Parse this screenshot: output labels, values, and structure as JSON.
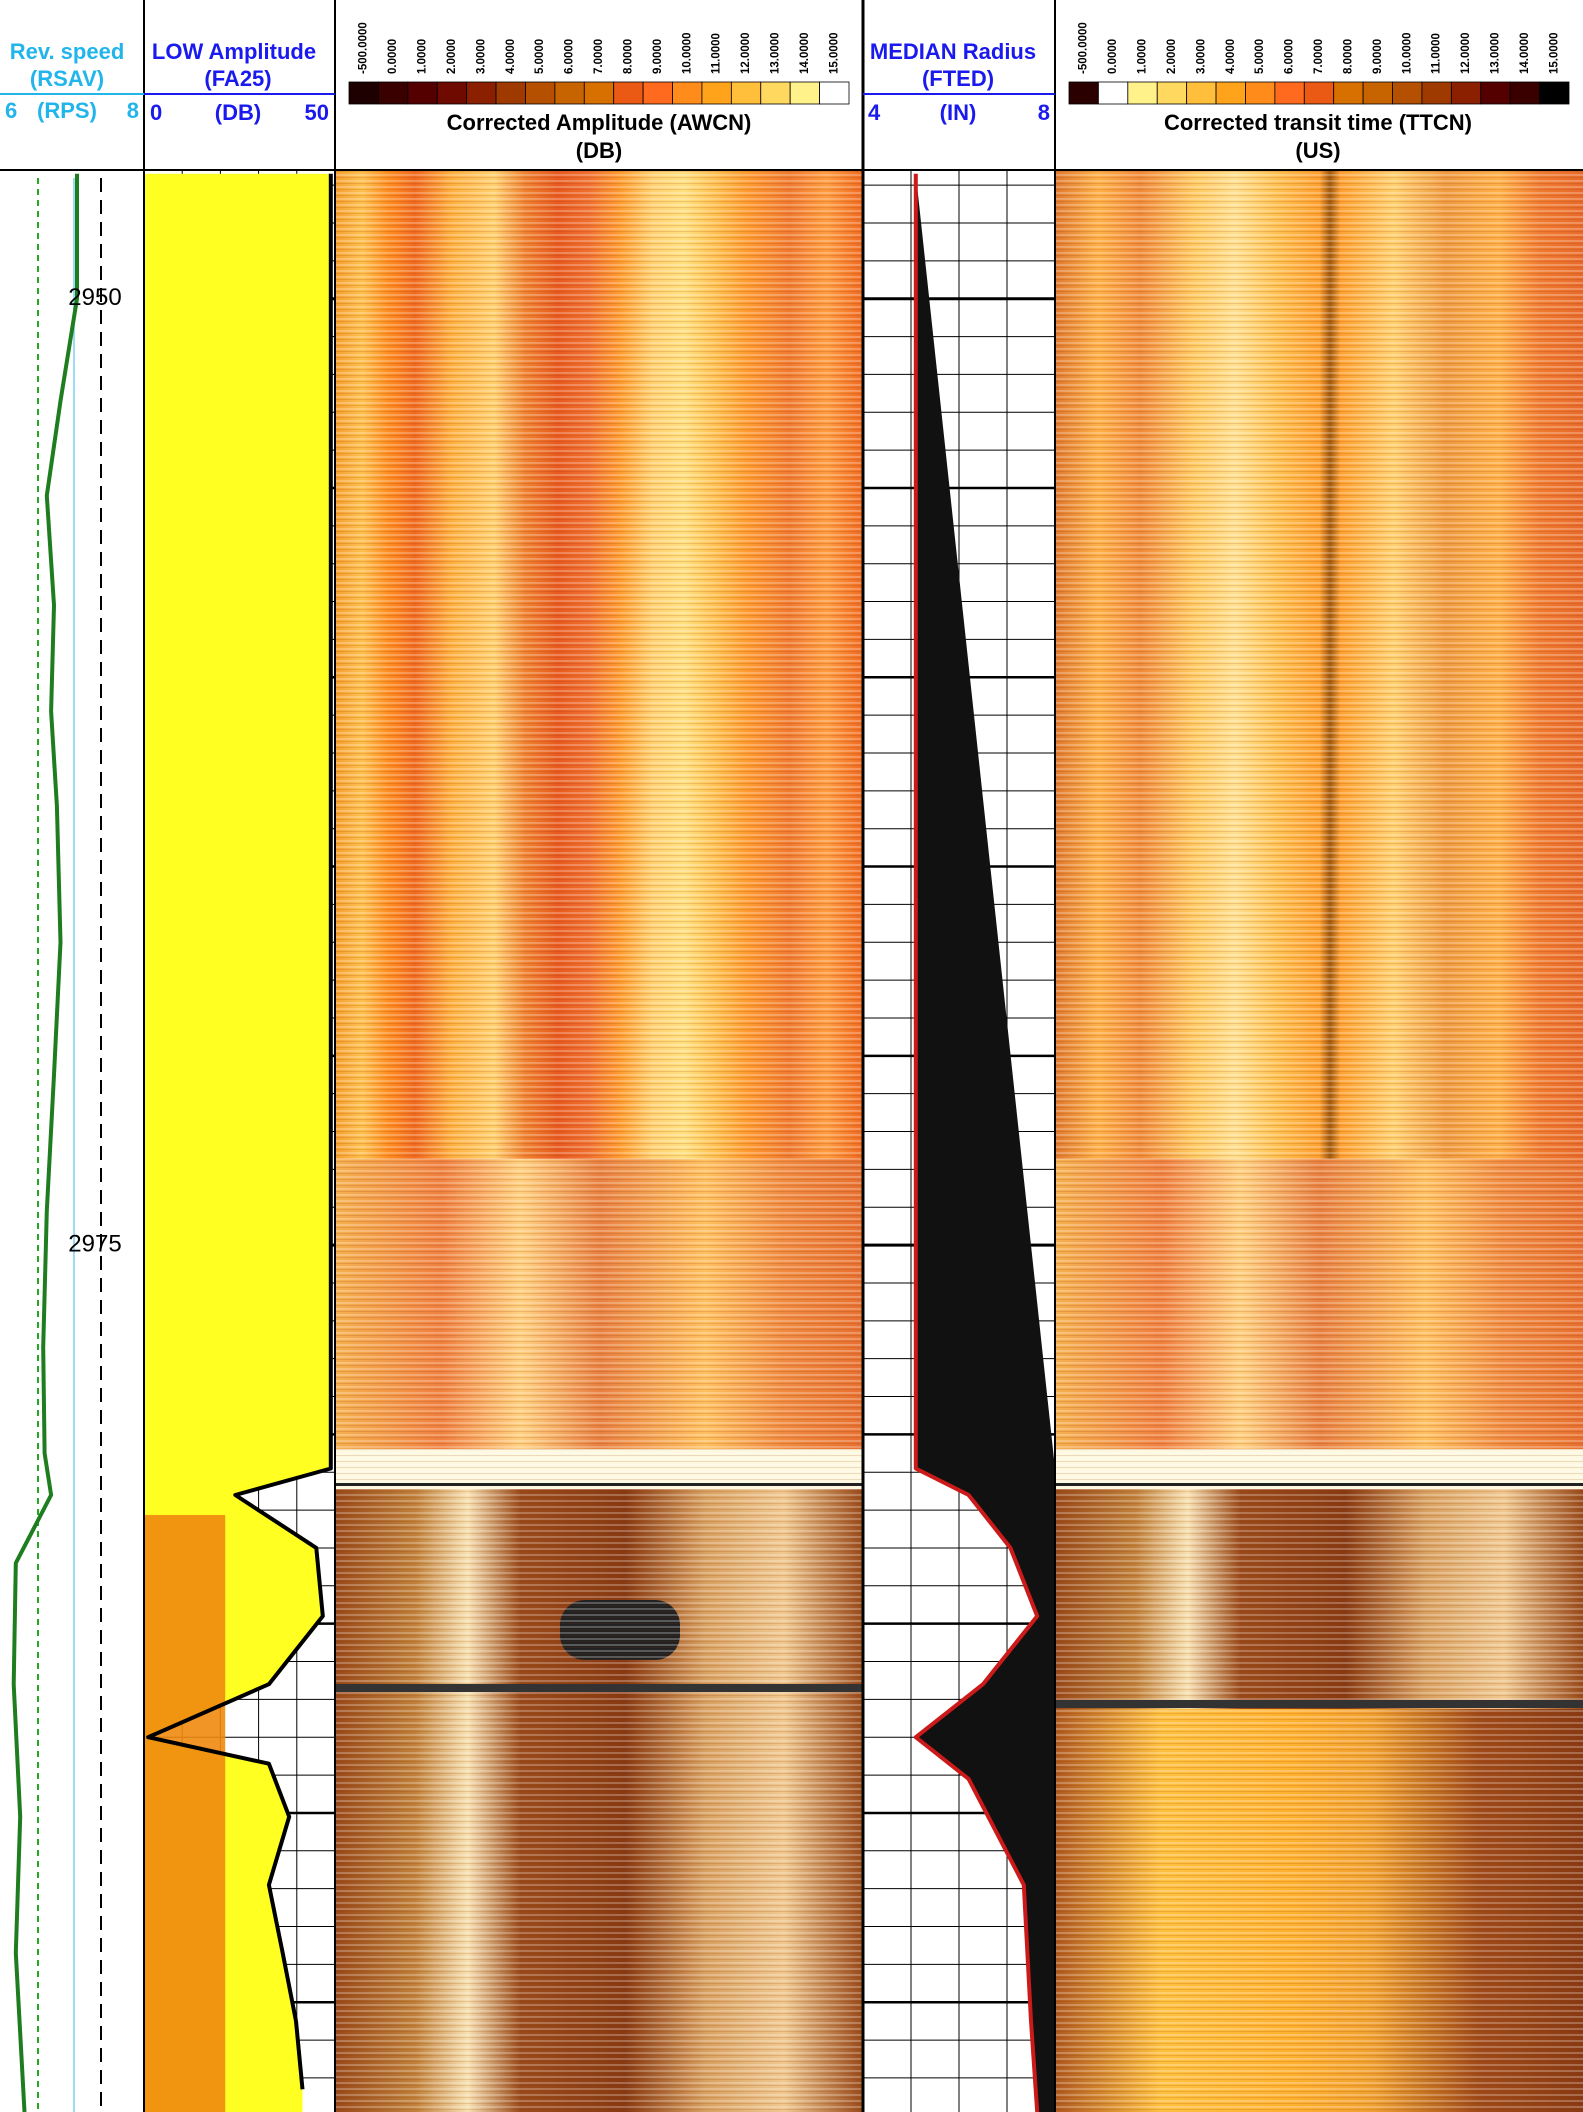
{
  "depth": {
    "range": [
      2946.6,
      2997.9
    ],
    "ticks": [
      2950,
      2975
    ],
    "grid": {
      "minor": 1,
      "major": 5
    }
  },
  "tracks": [
    {
      "title": "Rev. speed",
      "mnemonic": "(RSAV)",
      "unit": "(RPS)",
      "scale": [
        6,
        8
      ],
      "color": "#1e7d1e",
      "curve": {
        "depth": [
          2946.7,
          2950.0,
          2952.7,
          2955.2,
          2958.1,
          2960.9,
          2963.4,
          2967.0,
          2970.5,
          2974.1,
          2977.7,
          2980.5,
          2981.6,
          2982.3,
          2983.4,
          2986.6,
          2990.1,
          2993.7,
          2997.9
        ],
        "values": [
          7.07,
          7.07,
          6.84,
          6.65,
          6.75,
          6.71,
          6.79,
          6.84,
          6.75,
          6.65,
          6.6,
          6.62,
          6.71,
          6.52,
          6.22,
          6.19,
          6.28,
          6.22,
          6.34
        ]
      }
    },
    {
      "title": "LOW Amplitude",
      "mnemonic": "(FA25)",
      "unit": "(DB)",
      "scale": [
        0,
        50
      ],
      "color": "#000000",
      "curve": {
        "depth": [
          2946.7,
          2980.9,
          2981.6,
          2983.0,
          2984.8,
          2986.6,
          2988.0,
          2988.7,
          2990.1,
          2991.9,
          2993.7,
          2995.5,
          2997.3
        ],
        "values": [
          48.9,
          48.9,
          23.9,
          45.1,
          46.8,
          32.7,
          1.1,
          32.7,
          38.0,
          32.7,
          36.3,
          39.8,
          41.5
        ]
      }
    },
    {
      "title": "Corrected Amplitude (AWCN)",
      "unit": "(DB)",
      "palette": {
        "labels": [
          "-500.0000",
          "0.0000",
          "1.0000",
          "2.0000",
          "3.0000",
          "4.0000",
          "5.0000",
          "6.0000",
          "7.0000",
          "8.0000",
          "9.0000",
          "10.0000",
          "11.0000",
          "12.0000",
          "13.0000",
          "14.0000",
          "15.0000"
        ],
        "colors": [
          "#1e0000",
          "#3a0000",
          "#550000",
          "#6e0a00",
          "#8a2000",
          "#9e3a00",
          "#b45000",
          "#c86400",
          "#d87000",
          "#ea5a14",
          "#ff6a1e",
          "#ff8c1a",
          "#ffa31a",
          "#ffbf3a",
          "#ffd860",
          "#fff28a",
          "#ffffff"
        ]
      }
    },
    {
      "title": "MEDIAN Radius",
      "mnemonic": "(FTED)",
      "unit": "(IN)",
      "scale": [
        4,
        8
      ],
      "color": "#cc1a1a",
      "curve": {
        "depth": [
          2946.7,
          2980.9,
          2981.6,
          2983.0,
          2984.8,
          2986.6,
          2988.0,
          2989.1,
          2991.9,
          2995.5,
          2997.9
        ],
        "values": [
          5.1,
          5.1,
          6.2,
          7.07,
          7.63,
          6.5,
          5.1,
          6.2,
          7.35,
          7.5,
          7.63
        ]
      }
    },
    {
      "title": "Corrected transit time (TTCN)",
      "unit": "(US)",
      "palette": {
        "labels": [
          "-500.0000",
          "0.0000",
          "1.0000",
          "2.0000",
          "3.0000",
          "4.0000",
          "5.0000",
          "6.0000",
          "7.0000",
          "8.0000",
          "9.0000",
          "10.0000",
          "11.0000",
          "12.0000",
          "13.0000",
          "14.0000",
          "15.0000"
        ],
        "colors": [
          "#2a0000",
          "#ffffff",
          "#fff28a",
          "#ffd860",
          "#ffbf3a",
          "#ffa31a",
          "#ff8c1a",
          "#ff6a1e",
          "#ea5a14",
          "#d87000",
          "#c86400",
          "#b45000",
          "#9e3a00",
          "#8a2000",
          "#550000",
          "#3a0000",
          "#000000"
        ]
      }
    }
  ]
}
